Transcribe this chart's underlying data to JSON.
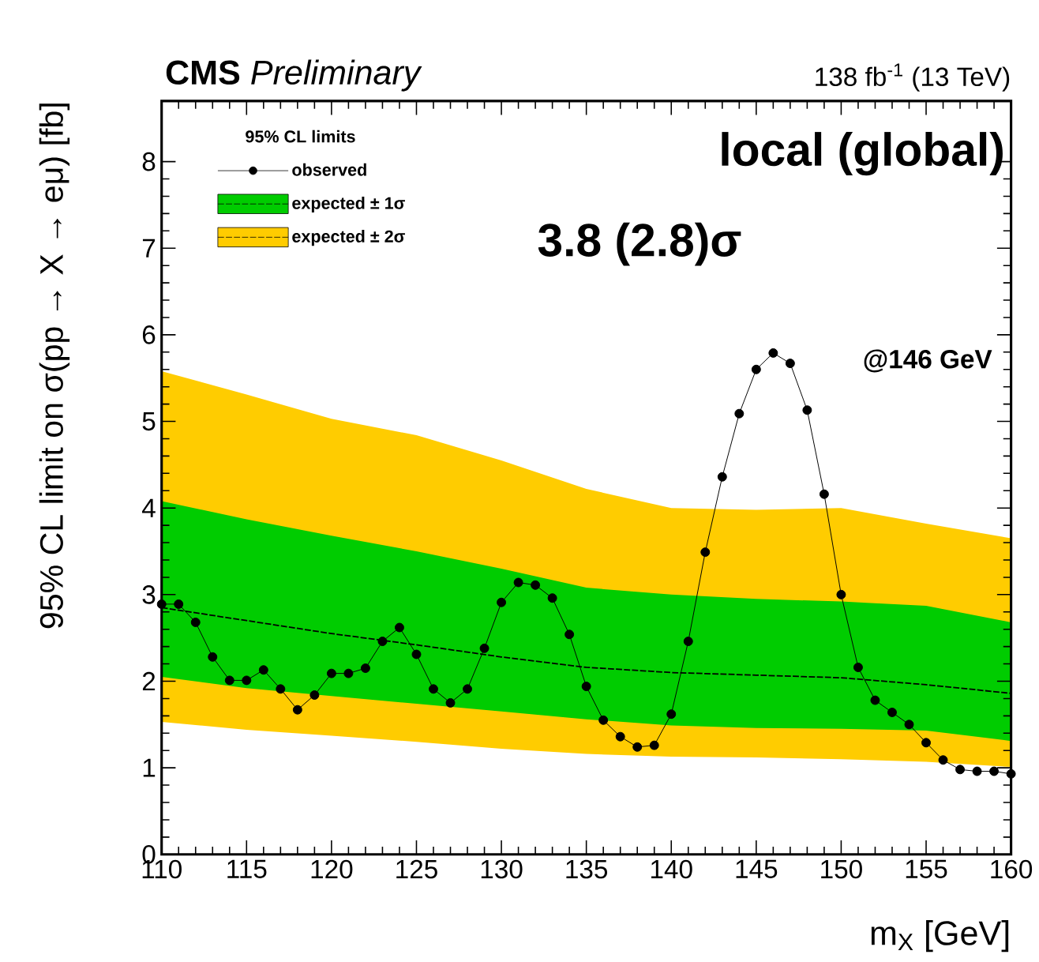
{
  "chart_data": {
    "type": "line",
    "title": "**CMS** *Preliminary*",
    "subtitle": "138 fb$^{-1}$ (13 TeV)",
    "xlabel": "m$_{X}$ [GeV]",
    "ylabel": "95% CL limit on σ(pp → X → eμ) [fb]",
    "legend_title": "95% CL limits",
    "xlim": [
      110,
      160
    ],
    "ylim": [
      0,
      8.7
    ],
    "xticks": [
      110,
      115,
      120,
      125,
      130,
      135,
      140,
      145,
      150,
      155,
      160
    ],
    "yticks": [
      0,
      1,
      2,
      3,
      4,
      5,
      6,
      7,
      8
    ],
    "grid": false,
    "legend": "top left",
    "annotations": [
      "local (global)",
      "3.8 (2.8)σ",
      "@146 GeV"
    ],
    "series": [
      {
        "name": "observed",
        "type": "line",
        "color": "#000000",
        "marker": "circle",
        "line_style": "solid",
        "x": [
          110,
          111,
          112,
          113,
          114,
          115,
          116,
          117,
          118,
          119,
          120,
          121,
          122,
          123,
          124,
          125,
          126,
          127,
          128,
          129,
          130,
          131,
          132,
          133,
          134,
          135,
          136,
          137,
          138,
          139,
          140,
          141,
          142,
          143,
          144,
          145,
          146,
          147,
          148,
          149,
          150,
          151,
          152,
          153,
          154,
          155,
          156,
          157,
          158,
          159,
          160
        ],
        "values": [
          2.89,
          2.89,
          2.68,
          2.28,
          2.01,
          2.01,
          2.13,
          1.91,
          1.67,
          1.84,
          2.09,
          2.09,
          2.15,
          2.46,
          2.62,
          2.31,
          1.91,
          1.75,
          1.91,
          2.38,
          2.91,
          3.14,
          3.11,
          2.96,
          2.54,
          1.94,
          1.55,
          1.36,
          1.24,
          1.26,
          1.62,
          2.46,
          3.49,
          4.36,
          5.09,
          5.6,
          5.79,
          5.67,
          5.13,
          4.16,
          3.0,
          2.16,
          1.78,
          1.64,
          1.5,
          1.29,
          1.09,
          0.98,
          0.96,
          0.96,
          0.93
        ]
      },
      {
        "name": "expected ± 1σ",
        "type": "line",
        "color": "#00cc00",
        "x": [
          110,
          115,
          120,
          125,
          130,
          135,
          140,
          145,
          150,
          155,
          160
        ],
        "values": [
          null,
          null,
          null,
          null,
          null,
          null,
          null,
          null,
          null,
          null,
          null
        ],
        "upper": [
          4.08,
          3.87,
          3.68,
          3.5,
          3.3,
          3.08,
          3.0,
          2.95,
          2.92,
          2.87,
          2.68
        ],
        "lower": [
          2.05,
          1.92,
          1.83,
          1.74,
          1.65,
          1.56,
          1.49,
          1.46,
          1.45,
          1.43,
          1.31
        ]
      },
      {
        "name": "expected ± 2σ",
        "type": "line",
        "color": "#ffcc00",
        "x": [
          110,
          115,
          120,
          125,
          130,
          135,
          140,
          145,
          150,
          155,
          160
        ],
        "values": [
          null,
          null,
          null,
          null,
          null,
          null,
          null,
          null,
          null,
          null,
          null
        ],
        "upper": [
          5.58,
          5.31,
          5.03,
          4.84,
          4.55,
          4.22,
          4.0,
          3.98,
          4.0,
          3.82,
          3.65
        ],
        "lower": [
          1.53,
          1.44,
          1.37,
          1.3,
          1.22,
          1.16,
          1.13,
          1.12,
          1.1,
          1.07,
          1.01
        ]
      },
      {
        "type": "line",
        "color": "#000000",
        "marker": "none",
        "line_style": "dashed",
        "x": [
          110,
          115,
          120,
          125,
          130,
          135,
          140,
          145,
          150,
          155,
          160
        ],
        "values": [
          2.85,
          2.7,
          2.55,
          2.42,
          2.28,
          2.16,
          2.1,
          2.07,
          2.04,
          1.96,
          1.86
        ]
      }
    ]
  }
}
